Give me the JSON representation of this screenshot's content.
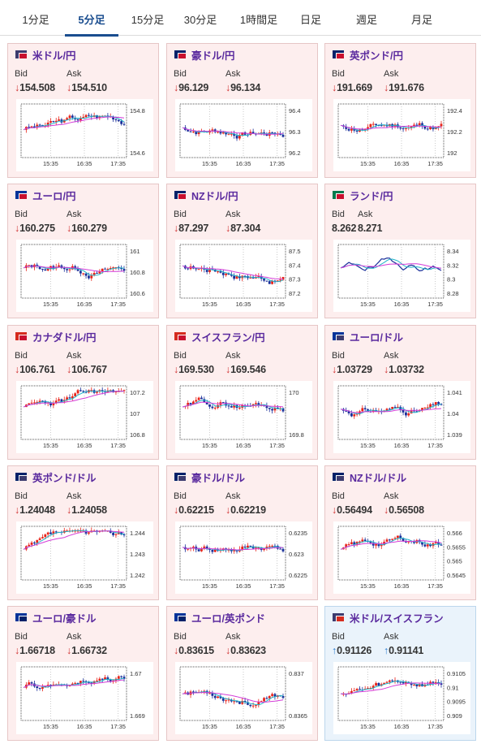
{
  "tabs": [
    {
      "label": "1分足",
      "active": false
    },
    {
      "label": "5分足",
      "active": true
    },
    {
      "label": "15分足",
      "active": false
    },
    {
      "label": "30分足",
      "active": false
    },
    {
      "label": "1時間足",
      "active": false
    },
    {
      "label": "日足",
      "active": false
    },
    {
      "label": "週足",
      "active": false
    },
    {
      "label": "月足",
      "active": false
    }
  ],
  "labels": {
    "bid": "Bid",
    "ask": "Ask"
  },
  "times": [
    "15:35",
    "16:35",
    "17:35"
  ],
  "colors": {
    "bull": "#e8241a",
    "bear": "#1a2f9a",
    "ma_fast": "#20b4c8",
    "ma_slow": "#d43cd8",
    "down": "#d03030",
    "up": "#2a7bd0"
  },
  "pairs": [
    {
      "name": "米ドル/円",
      "flag": [
        "#3c3b6e",
        "#c8102e"
      ],
      "dir": "down",
      "bid": "154.508",
      "ask": "154.510",
      "ticks": [
        "154.8",
        "154.6"
      ],
      "seed": 3
    },
    {
      "name": "豪ドル/円",
      "flag": [
        "#012169",
        "#c8102e"
      ],
      "dir": "down",
      "bid": "96.129",
      "ask": "96.134",
      "ticks": [
        "96.4",
        "96.3",
        "96.2"
      ],
      "seed": 7
    },
    {
      "name": "英ポンド/円",
      "flag": [
        "#012169",
        "#c8102e"
      ],
      "dir": "down",
      "bid": "191.669",
      "ask": "191.676",
      "ticks": [
        "192.4",
        "192.2",
        "192"
      ],
      "seed": 11
    },
    {
      "name": "ユーロ/円",
      "flag": [
        "#003399",
        "#c8102e"
      ],
      "dir": "down",
      "bid": "160.275",
      "ask": "160.279",
      "ticks": [
        "161",
        "160.8",
        "160.6"
      ],
      "seed": 13
    },
    {
      "name": "NZドル/円",
      "flag": [
        "#012169",
        "#c8102e"
      ],
      "dir": "down",
      "bid": "87.297",
      "ask": "87.304",
      "ticks": [
        "87.5",
        "87.4",
        "87.3",
        "87.2"
      ],
      "seed": 17
    },
    {
      "name": "ランド/円",
      "flag": [
        "#007a4d",
        "#c8102e"
      ],
      "dir": "",
      "bid": "8.262",
      "ask": "8.271",
      "ticks": [
        "8.34",
        "8.32",
        "8.3",
        "8.28"
      ],
      "seed": 19,
      "line": true
    },
    {
      "name": "カナダドル/円",
      "flag": [
        "#d52b1e",
        "#c8102e"
      ],
      "dir": "down",
      "bid": "106.761",
      "ask": "106.767",
      "ticks": [
        "107.2",
        "107",
        "106.8"
      ],
      "seed": 23
    },
    {
      "name": "スイスフラン/円",
      "flag": [
        "#d52b1e",
        "#c8102e"
      ],
      "dir": "down",
      "bid": "169.530",
      "ask": "169.546",
      "ticks": [
        "170",
        "169.8"
      ],
      "seed": 29
    },
    {
      "name": "ユーロ/ドル",
      "flag": [
        "#003399",
        "#3c3b6e"
      ],
      "dir": "down",
      "bid": "1.03729",
      "ask": "1.03732",
      "ticks": [
        "1.041",
        "1.04",
        "1.039"
      ],
      "seed": 31
    },
    {
      "name": "英ポンド/ドル",
      "flag": [
        "#012169",
        "#3c3b6e"
      ],
      "dir": "down",
      "bid": "1.24048",
      "ask": "1.24058",
      "ticks": [
        "1.244",
        "1.243",
        "1.242"
      ],
      "seed": 37
    },
    {
      "name": "豪ドル/ドル",
      "flag": [
        "#012169",
        "#3c3b6e"
      ],
      "dir": "down",
      "bid": "0.62215",
      "ask": "0.62219",
      "ticks": [
        "0.6235",
        "0.623",
        "0.6225"
      ],
      "seed": 41
    },
    {
      "name": "NZドル/ドル",
      "flag": [
        "#012169",
        "#3c3b6e"
      ],
      "dir": "down",
      "bid": "0.56494",
      "ask": "0.56508",
      "ticks": [
        "0.566",
        "0.5655",
        "0.565",
        "0.5645"
      ],
      "seed": 43
    },
    {
      "name": "ユーロ/豪ドル",
      "flag": [
        "#003399",
        "#012169"
      ],
      "dir": "down",
      "bid": "1.66718",
      "ask": "1.66732",
      "ticks": [
        "1.67",
        "1.669"
      ],
      "seed": 47
    },
    {
      "name": "ユーロ/英ポンド",
      "flag": [
        "#003399",
        "#012169"
      ],
      "dir": "down",
      "bid": "0.83615",
      "ask": "0.83623",
      "ticks": [
        "0.837",
        "0.8365"
      ],
      "seed": 53
    },
    {
      "name": "米ドル/スイスフラン",
      "flag": [
        "#3c3b6e",
        "#d52b1e"
      ],
      "dir": "up",
      "bid": "0.91126",
      "ask": "0.91141",
      "ticks": [
        "0.9105",
        "0.91",
        "0.9095",
        "0.909"
      ],
      "seed": 59
    }
  ]
}
